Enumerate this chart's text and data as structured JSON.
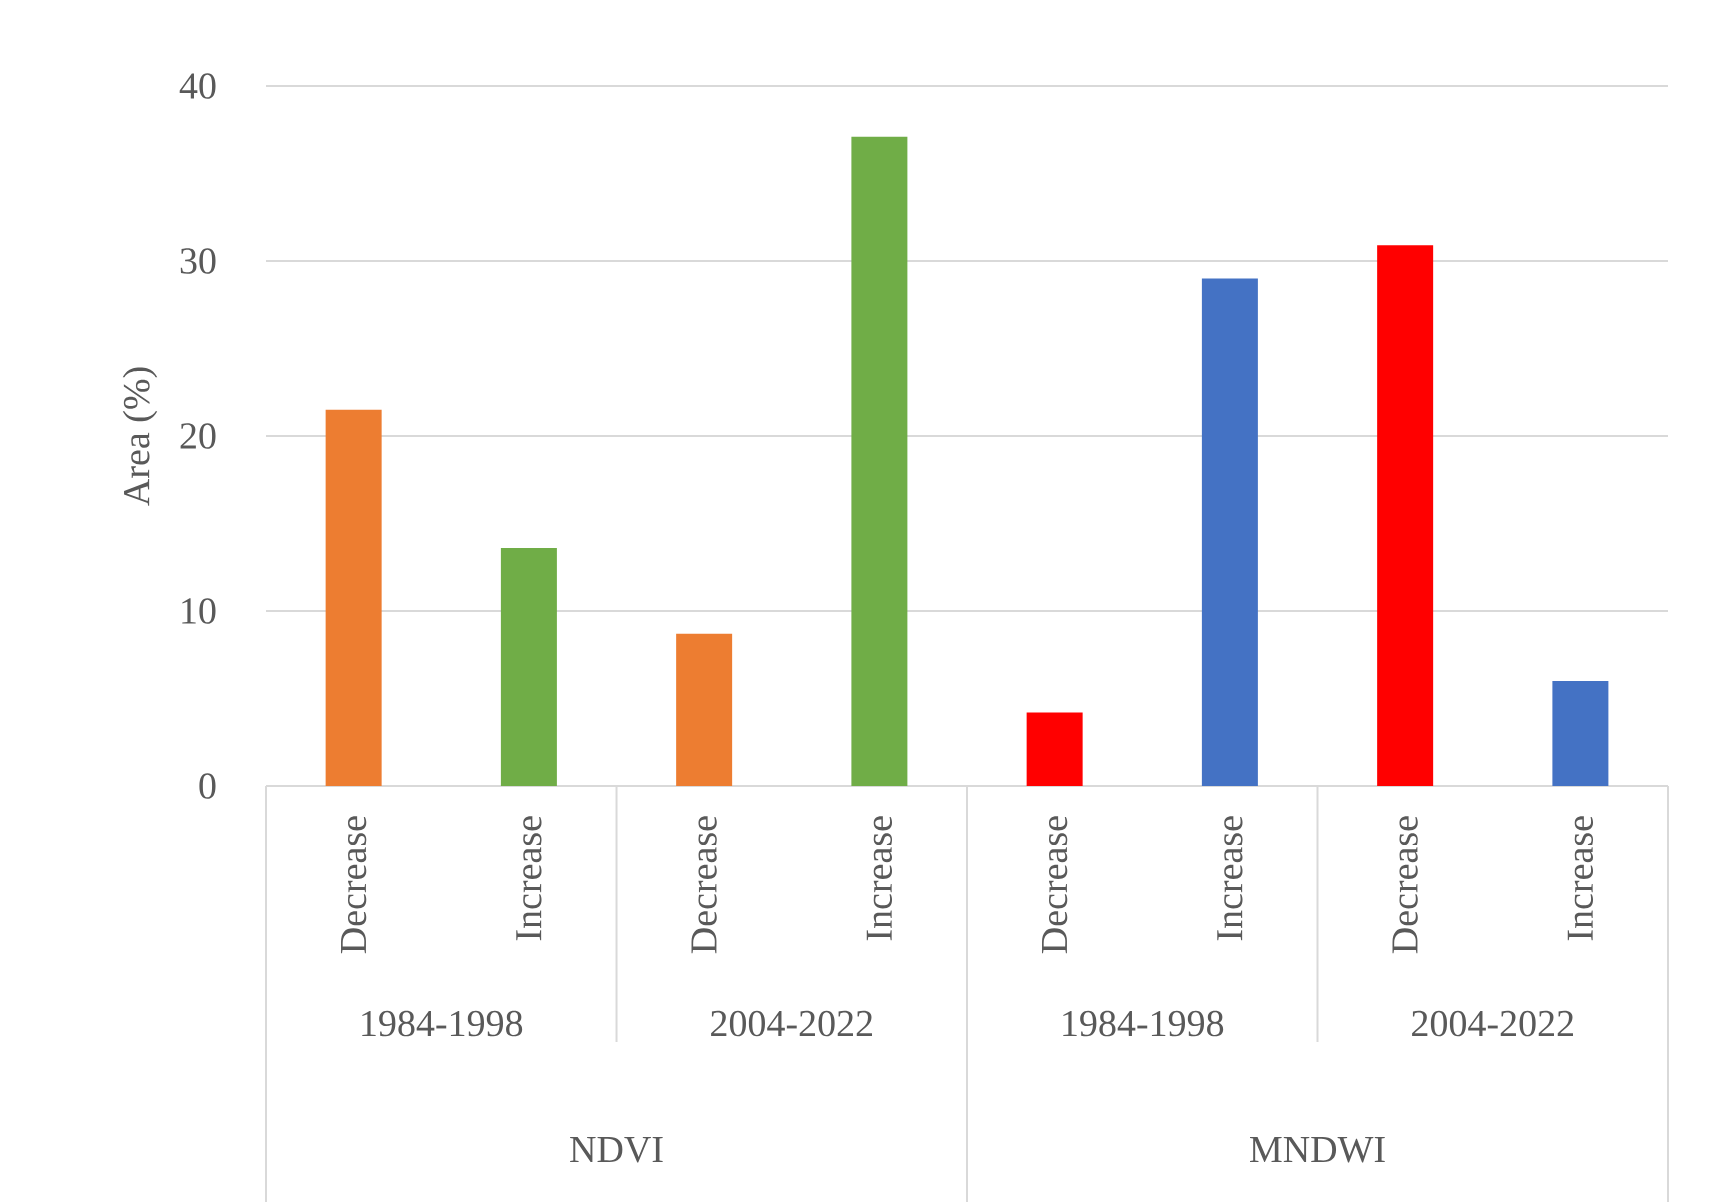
{
  "chart_data": {
    "type": "bar",
    "ylabel": "Area (%)",
    "categories": [
      "Decrease",
      "Increase",
      "Decrease",
      "Increase",
      "Decrease",
      "Increase",
      "Decrease",
      "Increase"
    ],
    "values": [
      21.5,
      13.6,
      8.7,
      37.1,
      4.2,
      29.0,
      30.9,
      6.0
    ],
    "colors": [
      "#ed7d31",
      "#70ad47",
      "#ed7d31",
      "#70ad47",
      "#ff0000",
      "#4472c4",
      "#ff0000",
      "#4472c4"
    ],
    "annotations": [
      "1984-1998",
      "2004-2022",
      "1984-1998",
      "2004-2022",
      "NDVI",
      "MNDWI"
    ],
    "ylim": [
      0,
      40
    ],
    "yticks": [
      0,
      10,
      20,
      30,
      40
    ],
    "grid": "y"
  }
}
